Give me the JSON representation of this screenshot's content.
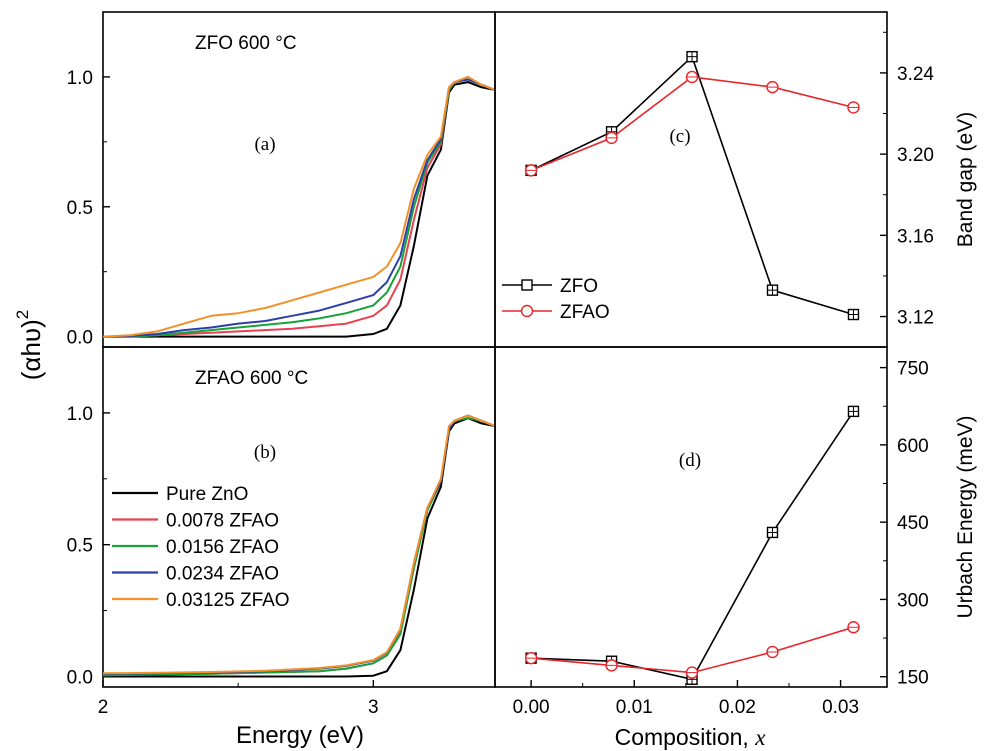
{
  "figure": {
    "shared_ylabel": "(αhυ)",
    "shared_ylabel_sup": "2",
    "energy_xlabel": "Energy (eV)",
    "composition_xlabel": "Composition, ",
    "composition_xlabel_var": "x"
  },
  "colors": {
    "pure_zno": "#000000",
    "x0078": "#e8414f",
    "x0156": "#16a33a",
    "x0234": "#2e3ea8",
    "x03125": "#f2912a",
    "zfo": "#000000",
    "zfao": "#e8252b"
  },
  "chart_data": [
    {
      "id": "a",
      "type": "line",
      "panel_label": "(a)",
      "annotation": "ZFO 600 °C",
      "xlabel": "",
      "ylabel": "",
      "xlim": [
        2.0,
        3.45
      ],
      "ylim": [
        -0.04,
        1.25
      ],
      "yticks": [
        0.0,
        0.5,
        1.0
      ],
      "ytick_labels": [
        "0.0",
        "0.5",
        "1.0"
      ],
      "x": [
        2.0,
        2.1,
        2.2,
        2.3,
        2.4,
        2.5,
        2.6,
        2.7,
        2.8,
        2.9,
        3.0,
        3.05,
        3.1,
        3.15,
        3.2,
        3.25,
        3.28,
        3.3,
        3.35,
        3.4,
        3.45
      ],
      "series": [
        {
          "key": "pure_zno",
          "values": [
            0,
            0,
            0,
            0,
            0,
            0,
            0,
            0,
            0,
            0,
            0.01,
            0.03,
            0.12,
            0.35,
            0.62,
            0.72,
            0.94,
            0.97,
            0.98,
            0.96,
            0.95
          ]
        },
        {
          "key": "x0078",
          "values": [
            0,
            0,
            0.005,
            0.01,
            0.015,
            0.02,
            0.025,
            0.03,
            0.04,
            0.05,
            0.08,
            0.12,
            0.22,
            0.45,
            0.65,
            0.74,
            0.95,
            0.98,
            0.99,
            0.97,
            0.95
          ]
        },
        {
          "key": "x0156",
          "values": [
            0,
            0,
            0.005,
            0.015,
            0.025,
            0.035,
            0.045,
            0.055,
            0.07,
            0.09,
            0.12,
            0.17,
            0.27,
            0.5,
            0.67,
            0.75,
            0.95,
            0.98,
            0.99,
            0.97,
            0.95
          ]
        },
        {
          "key": "x0234",
          "values": [
            0,
            0.002,
            0.01,
            0.025,
            0.035,
            0.05,
            0.06,
            0.08,
            0.1,
            0.13,
            0.16,
            0.21,
            0.31,
            0.53,
            0.68,
            0.76,
            0.96,
            0.98,
            0.99,
            0.97,
            0.95
          ]
        },
        {
          "key": "x03125",
          "values": [
            0,
            0.005,
            0.02,
            0.05,
            0.08,
            0.09,
            0.11,
            0.14,
            0.17,
            0.2,
            0.23,
            0.27,
            0.36,
            0.57,
            0.7,
            0.77,
            0.96,
            0.98,
            1.0,
            0.97,
            0.95
          ]
        }
      ]
    },
    {
      "id": "b",
      "type": "line",
      "panel_label": "(b)",
      "annotation": "ZFAO 600 °C",
      "xlabel": "Energy (eV)",
      "ylabel": "",
      "xlim": [
        2.0,
        3.45
      ],
      "ylim": [
        -0.04,
        1.25
      ],
      "xticks": [
        2,
        3
      ],
      "xtick_labels": [
        "2",
        "3"
      ],
      "yticks": [
        0.0,
        0.5,
        1.0
      ],
      "ytick_labels": [
        "0.0",
        "0.5",
        "1.0"
      ],
      "legend": {
        "placement": "lower-left",
        "entries": [
          {
            "key": "pure_zno",
            "label": "Pure ZnO"
          },
          {
            "key": "x0078",
            "label": "0.0078 ZFAO"
          },
          {
            "key": "x0156",
            "label": "0.0156 ZFAO"
          },
          {
            "key": "x0234",
            "label": "0.0234 ZFAO"
          },
          {
            "key": "x03125",
            "label": "0.03125 ZFAO"
          }
        ]
      },
      "x": [
        2.0,
        2.2,
        2.4,
        2.6,
        2.8,
        2.9,
        3.0,
        3.05,
        3.1,
        3.15,
        3.2,
        3.25,
        3.28,
        3.3,
        3.35,
        3.4,
        3.45
      ],
      "series": [
        {
          "key": "pure_zno",
          "values": [
            0,
            0,
            0,
            0,
            0,
            0,
            0.003,
            0.02,
            0.1,
            0.33,
            0.6,
            0.72,
            0.93,
            0.96,
            0.98,
            0.96,
            0.95
          ]
        },
        {
          "key": "x0078",
          "values": [
            0.005,
            0.008,
            0.01,
            0.015,
            0.02,
            0.03,
            0.05,
            0.08,
            0.17,
            0.42,
            0.64,
            0.74,
            0.94,
            0.97,
            0.99,
            0.97,
            0.95
          ]
        },
        {
          "key": "x0156",
          "values": [
            0.004,
            0.007,
            0.01,
            0.015,
            0.02,
            0.03,
            0.05,
            0.08,
            0.16,
            0.41,
            0.63,
            0.74,
            0.94,
            0.97,
            0.98,
            0.97,
            0.95
          ]
        },
        {
          "key": "x0234",
          "values": [
            0.01,
            0.012,
            0.015,
            0.02,
            0.03,
            0.04,
            0.06,
            0.09,
            0.18,
            0.43,
            0.64,
            0.74,
            0.94,
            0.97,
            0.99,
            0.97,
            0.95
          ]
        },
        {
          "key": "x03125",
          "values": [
            0.012,
            0.014,
            0.017,
            0.022,
            0.032,
            0.042,
            0.062,
            0.092,
            0.18,
            0.43,
            0.64,
            0.75,
            0.95,
            0.97,
            0.99,
            0.97,
            0.95
          ]
        }
      ]
    },
    {
      "id": "c",
      "type": "line",
      "panel_label": "(c)",
      "xlabel": "",
      "ylabel": "Band gap (eV)",
      "xlim": [
        -0.0035,
        0.0345
      ],
      "ylim": [
        3.105,
        3.27
      ],
      "yticks": [
        3.12,
        3.16,
        3.2,
        3.24
      ],
      "ytick_labels": [
        "3.12",
        "3.16",
        "3.20",
        "3.24"
      ],
      "legend": {
        "placement": "lower-left",
        "entries": [
          {
            "key": "zfo",
            "label": "ZFO"
          },
          {
            "key": "zfao",
            "label": "ZFAO"
          }
        ]
      },
      "series": [
        {
          "key": "zfo",
          "marker": "square",
          "x": [
            0,
            0.0078,
            0.0156,
            0.0234,
            0.03125
          ],
          "values": [
            3.192,
            3.211,
            3.248,
            3.133,
            3.121
          ]
        },
        {
          "key": "zfao",
          "marker": "circle",
          "x": [
            0,
            0.0078,
            0.0156,
            0.0234,
            0.03125
          ],
          "values": [
            3.192,
            3.208,
            3.238,
            3.233,
            3.223
          ]
        }
      ]
    },
    {
      "id": "d",
      "type": "line",
      "panel_label": "(d)",
      "xlabel": "Composition, x",
      "ylabel": "Urbach Energy (meV)",
      "xlim": [
        -0.0035,
        0.0345
      ],
      "ylim": [
        130,
        790
      ],
      "xticks": [
        0,
        0.01,
        0.02,
        0.03
      ],
      "xtick_labels": [
        "0.00",
        "0.01",
        "0.02",
        "0.03"
      ],
      "yticks": [
        150,
        300,
        450,
        600,
        750
      ],
      "ytick_labels": [
        "150",
        "300",
        "450",
        "600",
        "750"
      ],
      "series": [
        {
          "key": "zfo",
          "marker": "square",
          "x": [
            0,
            0.0078,
            0.0156,
            0.0234,
            0.03125
          ],
          "values": [
            186,
            180,
            145,
            430,
            665
          ]
        },
        {
          "key": "zfao",
          "marker": "circle",
          "x": [
            0,
            0.0078,
            0.0156,
            0.0234,
            0.03125
          ],
          "values": [
            186,
            172,
            158,
            198,
            246
          ]
        }
      ]
    }
  ]
}
